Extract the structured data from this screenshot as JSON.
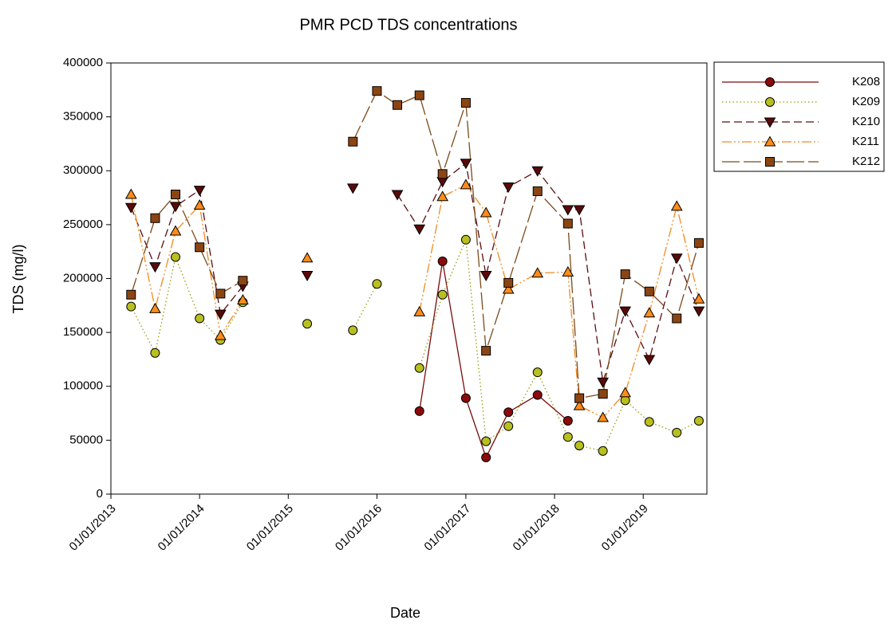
{
  "chart_data": {
    "type": "line",
    "title": "PMR PCD TDS concentrations",
    "x_label": "Date",
    "y_label": "TDS (mg/l)",
    "x": [
      "25/03/2013",
      "02/07/2013",
      "24/09/2013",
      "01/01/2014",
      "28/03/2014",
      "28/06/2014",
      "01/11/2014",
      "20/03/2015",
      "01/07/2015",
      "24/09/2015",
      "01/01/2016",
      "25/03/2016",
      "24/06/2016",
      "27/09/2016",
      "01/01/2017",
      "25/03/2017",
      "25/06/2017",
      "23/10/2017",
      "25/02/2018",
      "13/04/2018",
      "19/07/2018",
      "19/10/2018",
      "26/01/2019",
      "19/05/2019",
      "18/08/2019"
    ],
    "series": [
      {
        "name": "K208",
        "color": "#7a0c0c",
        "fill": "#8b0a0a",
        "marker": "circle",
        "dash": "",
        "values": [
          null,
          null,
          null,
          null,
          null,
          null,
          null,
          null,
          null,
          null,
          null,
          null,
          77000,
          216000,
          89000,
          34000,
          76000,
          92000,
          68000,
          null,
          null,
          null,
          null,
          null,
          null
        ]
      },
      {
        "name": "K209",
        "color": "#9a9a10",
        "fill": "#b8c020",
        "marker": "circle",
        "dash": "1.5 3",
        "values": [
          174000,
          131000,
          220000,
          163000,
          143000,
          178000,
          null,
          158000,
          null,
          152000,
          195000,
          null,
          117000,
          185000,
          236000,
          49000,
          63000,
          113000,
          53000,
          45000,
          40000,
          87000,
          67000,
          57000,
          68000
        ]
      },
      {
        "name": "K210",
        "color": "#5a0e14",
        "fill": "#5a0a0a",
        "marker": "down",
        "dash": "10 5",
        "values": [
          266000,
          211000,
          267000,
          282000,
          167000,
          193000,
          null,
          203000,
          null,
          284000,
          null,
          278000,
          246000,
          290000,
          307000,
          203000,
          285000,
          300000,
          264000,
          264000,
          104000,
          170000,
          125000,
          219000,
          170000
        ]
      },
      {
        "name": "K211",
        "color": "#f08a20",
        "fill": "#ff8c1a",
        "marker": "up",
        "dash": "12 3 2 3 2 3",
        "values": [
          278000,
          172000,
          244000,
          268000,
          147000,
          180000,
          null,
          219000,
          null,
          null,
          null,
          null,
          169000,
          276000,
          287000,
          261000,
          190000,
          205000,
          206000,
          82000,
          71000,
          94000,
          168000,
          267000,
          181000
        ]
      },
      {
        "name": "K212",
        "color": "#7a4a1a",
        "fill": "#8b4513",
        "marker": "square",
        "dash": "22 5",
        "values": [
          185000,
          256000,
          278000,
          229000,
          186000,
          198000,
          null,
          null,
          null,
          327000,
          374000,
          361000,
          370000,
          297000,
          363000,
          133000,
          196000,
          281000,
          251000,
          89000,
          93000,
          204000,
          188000,
          163000,
          233000
        ]
      }
    ],
    "xlim": [
      "01/01/2013",
      "20/09/2019"
    ],
    "xticks": [
      "01/01/2013",
      "01/01/2014",
      "01/01/2015",
      "01/01/2016",
      "01/01/2017",
      "01/01/2018",
      "01/01/2019"
    ],
    "ylim": [
      0,
      400000
    ],
    "yticks": [
      0,
      50000,
      100000,
      150000,
      200000,
      250000,
      300000,
      350000,
      400000
    ],
    "legend": "outside-top-right"
  }
}
